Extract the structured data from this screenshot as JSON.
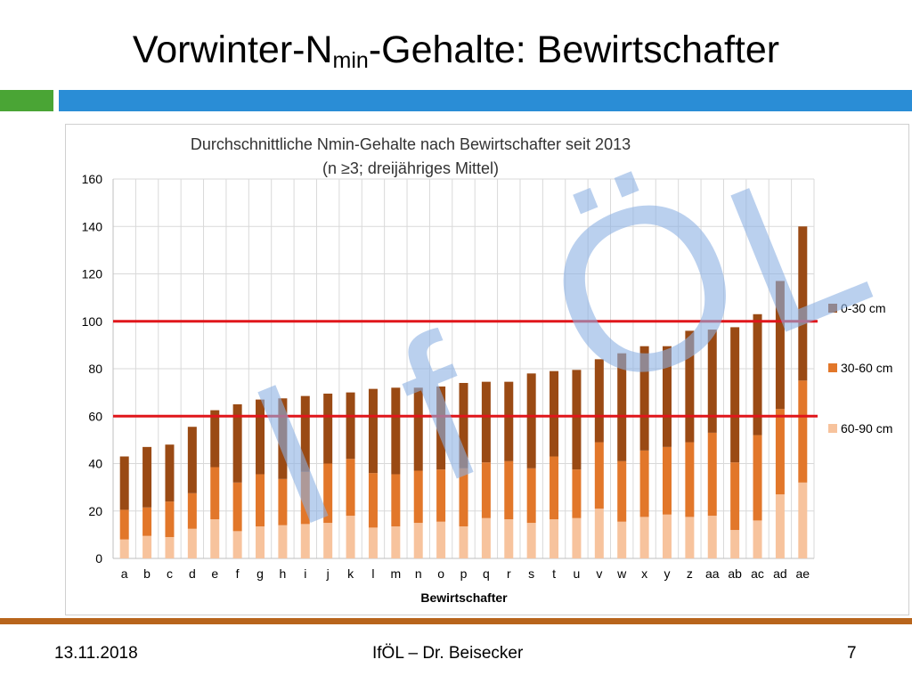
{
  "slide": {
    "title_main": "Vorwinter-N",
    "title_sub": "min",
    "title_rest": "-Gehalte: Bewirtschafter"
  },
  "colors": {
    "accent_green": "#4aa535",
    "accent_blue": "#2a8dd6",
    "bottom_line": "#b8651c",
    "series_0_30": "#9a4a14",
    "series_30_60": "#e2772a",
    "series_60_90": "#f7c39d",
    "reference_lines": "#e0161b",
    "watermark": "#8db1e3"
  },
  "footer": {
    "date": "13.11.2018",
    "center": "IfÖL – Dr. Beisecker",
    "page": "7"
  },
  "watermark_text": "IfÖL",
  "chart_data": {
    "type": "bar",
    "stacked": true,
    "title_line1": "Durchschnittliche Nmin-Gehalte nach Bewirtschafter seit 2013",
    "title_line2": "(n ≥3; dreijähriges Mittel)",
    "xlabel": "Bewirtschafter",
    "ylabel": "",
    "ylim": [
      0,
      160
    ],
    "yticks": [
      0,
      20,
      40,
      60,
      80,
      100,
      120,
      140,
      160
    ],
    "grid": true,
    "legend_position": "right",
    "categories": [
      "a",
      "b",
      "c",
      "d",
      "e",
      "f",
      "g",
      "h",
      "i",
      "j",
      "k",
      "l",
      "m",
      "n",
      "o",
      "p",
      "q",
      "r",
      "s",
      "t",
      "u",
      "v",
      "w",
      "x",
      "y",
      "z",
      "aa",
      "ab",
      "ac",
      "ad",
      "ae"
    ],
    "series": [
      {
        "name": "60-90 cm",
        "values": [
          8,
          9.5,
          9,
          12.5,
          16.5,
          11.5,
          13.5,
          14,
          14.5,
          15,
          18,
          13,
          13.5,
          15,
          15.5,
          13.5,
          17,
          16.5,
          15,
          16.5,
          17,
          21,
          15.5,
          17.5,
          18.5,
          17.5,
          18,
          12,
          16,
          27,
          32
        ]
      },
      {
        "name": "30-60 cm",
        "values": [
          12.5,
          12,
          15,
          15,
          22,
          20.5,
          22,
          19.5,
          22,
          25,
          24,
          23,
          22,
          22,
          22,
          24.5,
          23.5,
          24.5,
          23,
          26.5,
          20.5,
          28,
          25.5,
          28,
          28.5,
          31.5,
          35,
          28.5,
          36,
          36,
          43
        ]
      },
      {
        "name": "0-30 cm",
        "values": [
          22.5,
          25.5,
          24,
          28,
          24,
          33,
          31.5,
          34,
          32,
          29.5,
          28,
          35.5,
          36.5,
          35,
          35,
          36,
          34,
          33.5,
          40,
          36,
          42,
          35,
          45.5,
          44,
          42.5,
          47,
          43.5,
          57,
          51,
          54,
          65
        ]
      }
    ],
    "reference_lines": [
      100,
      60
    ]
  }
}
